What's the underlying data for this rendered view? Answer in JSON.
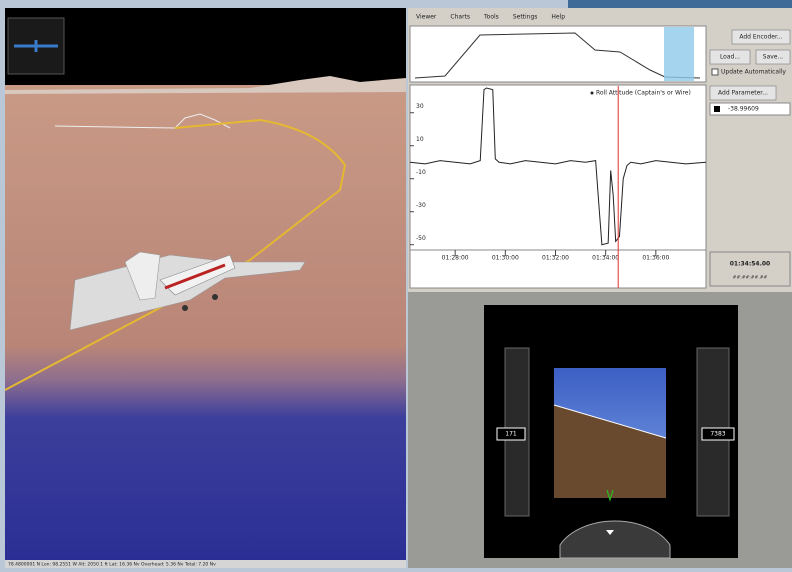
{
  "menu": [
    "Viewer",
    "Charts",
    "Tools",
    "Settings",
    "Help"
  ],
  "buttons": {
    "add_encoder": "Add Encoder...",
    "load": "Load...",
    "save": "Save...",
    "update": "Update Automatically",
    "add_parameter": "Add Parameter..."
  },
  "parameter": {
    "value": "-38.99609"
  },
  "readout": {
    "time": "01:34:54.00",
    "sub": "##:##:##.##"
  },
  "roll_chart": {
    "type": "line",
    "series": [
      {
        "name": "Roll Attitude (Captain's or Wire)",
        "color": "#222222",
        "x": [
          26.2,
          26.8,
          27.4,
          28.0,
          28.6,
          29.0,
          29.15,
          29.25,
          29.5,
          29.6,
          29.75,
          30.2,
          30.8,
          31.4,
          32.0,
          32.6,
          33.2,
          33.6,
          33.75,
          33.85,
          34.1,
          34.2,
          34.3,
          34.4,
          34.55,
          34.7,
          34.85,
          35.0,
          35.4,
          36.0,
          36.6,
          37.2,
          38.0
        ],
        "values": [
          0,
          -1,
          1,
          0,
          -1,
          1,
          44,
          45,
          44,
          2,
          0,
          -1,
          1,
          0,
          -1,
          1,
          0,
          1,
          -30,
          -50,
          -49,
          -5,
          -20,
          -48,
          -45,
          -10,
          -2,
          0,
          -1,
          1,
          0,
          -1,
          0
        ]
      }
    ],
    "xlim": [
      26.2,
      38.0
    ],
    "ylim": [
      -52,
      45
    ],
    "yticks": [
      30,
      10,
      -10,
      -30,
      -50
    ],
    "xticks": [
      {
        "value": 28,
        "label": "01:28:00"
      },
      {
        "value": 30,
        "label": "01:30:00"
      },
      {
        "value": 32,
        "label": "01:32:00"
      },
      {
        "value": 34,
        "label": "01:34:00"
      },
      {
        "value": 36,
        "label": "01:36:00"
      }
    ],
    "cursor": 34.5
  },
  "pfd": {
    "speed": "171",
    "altitude": "7383"
  },
  "status": "78.4800001 N  Lon: 98.2551 W  Alt: 2050.1 ft   Lat: 16.36 Nv  Overhead: 5.36 Nv  Total: 7.20 Nv"
}
